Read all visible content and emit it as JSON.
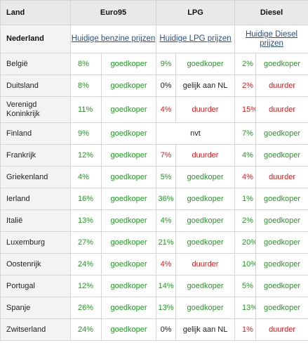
{
  "header": {
    "land": "Land",
    "euro95": "Euro95",
    "lpg": "LPG",
    "diesel": "Diesel"
  },
  "nederland": {
    "label": "Nederland",
    "euro95_link": "Huidige benzine prijzen",
    "lpg_link": "Huidige LPG prijzen",
    "diesel_link": "Huidige Diesel prijzen"
  },
  "colors": {
    "cheaper": "#1e9c1e",
    "pricier": "#e21a1a",
    "equal": "#222222"
  },
  "rows": [
    {
      "land": "België",
      "e_pct": "8%",
      "e_lbl": "goedkoper",
      "l_pct": "9%",
      "l_lbl": "goedkoper",
      "d_pct": "2%",
      "d_lbl": "goedkoper"
    },
    {
      "land": "Duitsland",
      "e_pct": "8%",
      "e_lbl": "goedkoper",
      "l_pct": "0%",
      "l_lbl": "gelijk aan NL",
      "d_pct": "2%",
      "d_lbl": "duurder"
    },
    {
      "land": "Verenigd Koninkrijk",
      "e_pct": "11%",
      "e_lbl": "goedkoper",
      "l_pct": "4%",
      "l_lbl": "duurder",
      "d_pct": "15%",
      "d_lbl": "duurder"
    },
    {
      "land": "Finland",
      "e_pct": "9%",
      "e_lbl": "goedkoper",
      "l_lbl": "nvt",
      "d_pct": "7%",
      "d_lbl": "goedkoper"
    },
    {
      "land": "Frankrijk",
      "e_pct": "12%",
      "e_lbl": "goedkoper",
      "l_pct": "7%",
      "l_lbl": "duurder",
      "d_pct": "4%",
      "d_lbl": "goedkoper"
    },
    {
      "land": "Griekenland",
      "e_pct": "4%",
      "e_lbl": "goedkoper",
      "l_pct": "5%",
      "l_lbl": "goedkoper",
      "d_pct": "4%",
      "d_lbl": "duurder"
    },
    {
      "land": "Ierland",
      "e_pct": "16%",
      "e_lbl": "goedkoper",
      "l_pct": "36%",
      "l_lbl": "goedkoper",
      "d_pct": "1%",
      "d_lbl": "goedkoper"
    },
    {
      "land": "Italië",
      "e_pct": "13%",
      "e_lbl": "goedkoper",
      "l_pct": "4%",
      "l_lbl": "goedkoper",
      "d_pct": "2%",
      "d_lbl": "goedkoper"
    },
    {
      "land": "Luxemburg",
      "e_pct": "27%",
      "e_lbl": "goedkoper",
      "l_pct": "21%",
      "l_lbl": "goedkoper",
      "d_pct": "20%",
      "d_lbl": "goedkoper"
    },
    {
      "land": "Oostenrijk",
      "e_pct": "24%",
      "e_lbl": "goedkoper",
      "l_pct": "4%",
      "l_lbl": "duurder",
      "d_pct": "10%",
      "d_lbl": "goedkoper"
    },
    {
      "land": "Portugal",
      "e_pct": "12%",
      "e_lbl": "goedkoper",
      "l_pct": "14%",
      "l_lbl": "goedkoper",
      "d_pct": "5%",
      "d_lbl": "goedkoper"
    },
    {
      "land": "Spanje",
      "e_pct": "26%",
      "e_lbl": "goedkoper",
      "l_pct": "13%",
      "l_lbl": "goedkoper",
      "d_pct": "13%",
      "d_lbl": "goedkoper"
    },
    {
      "land": "Zwitserland",
      "e_pct": "24%",
      "e_lbl": "goedkoper",
      "l_pct": "0%",
      "l_lbl": "gelijk aan NL",
      "d_pct": "1%",
      "d_lbl": "duurder"
    }
  ]
}
